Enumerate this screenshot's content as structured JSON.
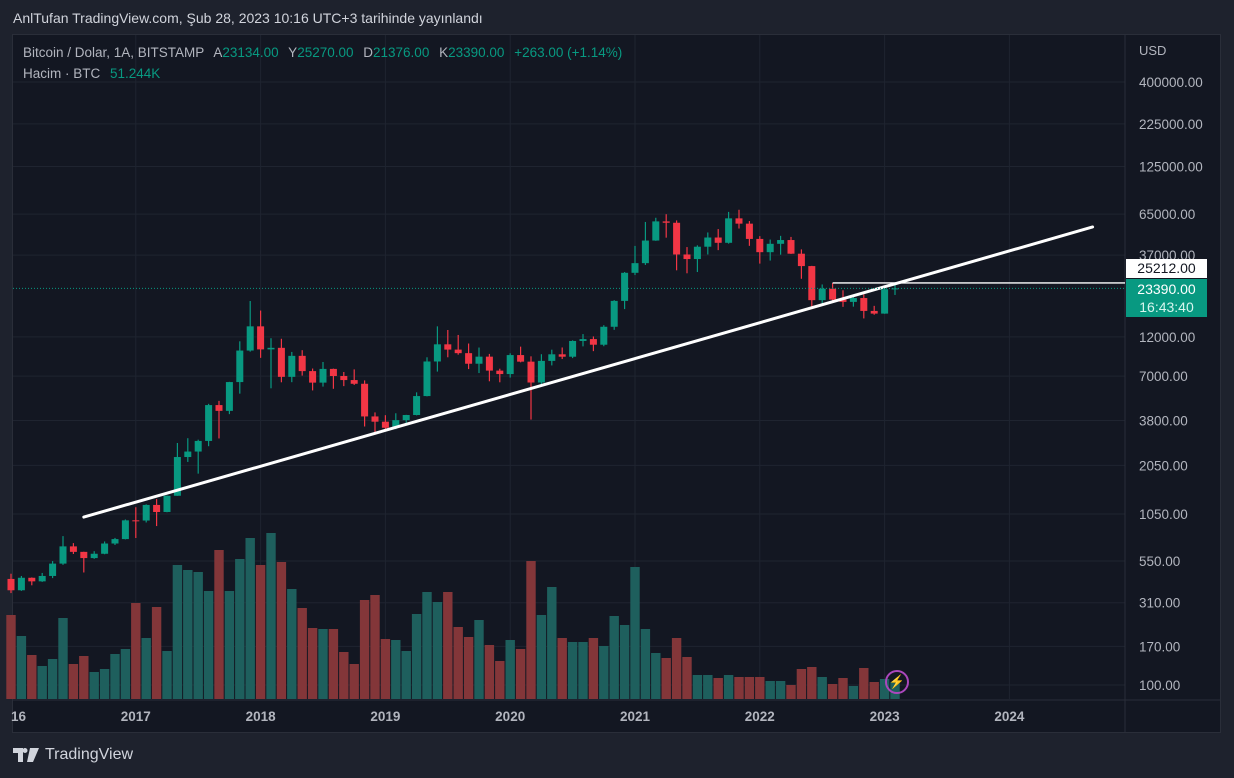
{
  "published": "AnlTufan TradingView.com, Şub 28, 2023 10:16 UTC+3 tarihinde yayınlandı",
  "legend": {
    "symbol": "Bitcoin / Dolar, 1A, BITSTAMP",
    "open_label": "A",
    "open": "23134.00",
    "high_label": "Y",
    "high": "25270.00",
    "low_label": "D",
    "low": "21376.00",
    "close_label": "K",
    "close": "23390.00",
    "change": "+263.00 (+1.14%)",
    "volume_label": "Hacim · BTC",
    "volume": "51.244K"
  },
  "price_boxes": {
    "line_price": "25212.00",
    "last_price": "23390.00",
    "countdown": "16:43:40"
  },
  "footer": {
    "brand": "TradingView"
  },
  "icons": {
    "logo": "tradingview-logo-icon",
    "bolt": "lightning-icon"
  },
  "colors": {
    "up": "#089981",
    "down": "#f23645",
    "vol_up": "#1e5f5d",
    "vol_down": "#833639",
    "line": "#ffffff"
  },
  "chart_data": {
    "type": "candlestick",
    "interval": "1 month",
    "start": "2016-01",
    "scale": "log",
    "currency": "USD",
    "yaxis_ticks": [
      "400000.00",
      "225000.00",
      "125000.00",
      "65000.00",
      "37000.00",
      "12000.00",
      "7000.00",
      "3800.00",
      "2050.00",
      "1050.00",
      "550.00",
      "310.00",
      "170.00",
      "100.00"
    ],
    "ytick_values": [
      400000,
      225000,
      125000,
      65000,
      37000,
      12000,
      7000,
      3800,
      2050,
      1050,
      550,
      310,
      170,
      100
    ],
    "xaxis_ticks": [
      {
        "label": "16",
        "month": 0
      },
      {
        "label": "2017",
        "month": 12
      },
      {
        "label": "2018",
        "month": 24
      },
      {
        "label": "2019",
        "month": 36
      },
      {
        "label": "2020",
        "month": 48
      },
      {
        "label": "2021",
        "month": 60
      },
      {
        "label": "2022",
        "month": 72
      },
      {
        "label": "2023",
        "month": 84
      },
      {
        "label": "2024",
        "month": 96
      }
    ],
    "ohlc": [
      [
        430,
        462,
        354,
        368
      ],
      [
        368,
        448,
        365,
        437
      ],
      [
        437,
        439,
        394,
        416
      ],
      [
        416,
        467,
        413,
        448
      ],
      [
        448,
        550,
        435,
        531
      ],
      [
        531,
        775,
        522,
        673
      ],
      [
        673,
        704,
        606,
        624
      ],
      [
        624,
        625,
        470,
        573
      ],
      [
        573,
        630,
        567,
        608
      ],
      [
        608,
        720,
        604,
        700
      ],
      [
        700,
        756,
        686,
        744
      ],
      [
        744,
        974,
        741,
        963
      ],
      [
        963,
        1153,
        755,
        960
      ],
      [
        960,
        1200,
        935,
        1190
      ],
      [
        1190,
        1290,
        890,
        1080
      ],
      [
        1080,
        1355,
        1076,
        1350
      ],
      [
        1350,
        2790,
        1350,
        2300
      ],
      [
        2300,
        2980,
        2150,
        2480
      ],
      [
        2480,
        2920,
        1830,
        2870
      ],
      [
        2870,
        4780,
        2670,
        4700
      ],
      [
        4700,
        4980,
        2970,
        4340
      ],
      [
        4340,
        6470,
        4150,
        6450
      ],
      [
        6450,
        11300,
        5500,
        9950
      ],
      [
        9950,
        19666,
        9800,
        13880
      ],
      [
        13880,
        17250,
        9000,
        10110
      ],
      [
        10110,
        11790,
        5920,
        10330
      ],
      [
        10330,
        11700,
        6430,
        6930
      ],
      [
        6930,
        9760,
        6440,
        9250
      ],
      [
        9250,
        10000,
        7050,
        7500
      ],
      [
        7500,
        7770,
        5750,
        6400
      ],
      [
        6400,
        8500,
        6060,
        7730
      ],
      [
        7730,
        7760,
        5880,
        7010
      ],
      [
        7010,
        7410,
        6100,
        6630
      ],
      [
        6630,
        7680,
        6200,
        6300
      ],
      [
        6300,
        6600,
        3500,
        4020
      ],
      [
        4020,
        4250,
        3130,
        3740
      ],
      [
        3740,
        4090,
        3360,
        3440
      ],
      [
        3440,
        4200,
        3370,
        3820
      ],
      [
        3820,
        4110,
        3680,
        4100
      ],
      [
        4100,
        5600,
        4080,
        5320
      ],
      [
        5320,
        9070,
        5300,
        8560
      ],
      [
        8560,
        13880,
        7450,
        10840
      ],
      [
        10840,
        13200,
        9070,
        10080
      ],
      [
        10080,
        12330,
        9400,
        9600
      ],
      [
        9600,
        10960,
        7710,
        8300
      ],
      [
        8300,
        10370,
        7300,
        9150
      ],
      [
        9150,
        9500,
        6520,
        7550
      ],
      [
        7550,
        7750,
        6430,
        7200
      ],
      [
        7200,
        9580,
        6860,
        9350
      ],
      [
        9350,
        10500,
        8460,
        8540
      ],
      [
        8540,
        9190,
        3850,
        6410
      ],
      [
        6410,
        9460,
        6150,
        8630
      ],
      [
        8630,
        10070,
        8110,
        9450
      ],
      [
        9450,
        10380,
        8850,
        9140
      ],
      [
        9140,
        11450,
        8970,
        11350
      ],
      [
        11350,
        12480,
        10540,
        11650
      ],
      [
        11650,
        12080,
        9870,
        10780
      ],
      [
        10780,
        14100,
        10560,
        13800
      ],
      [
        13800,
        19900,
        13230,
        19700
      ],
      [
        19700,
        29300,
        17600,
        28990
      ],
      [
        28990,
        41970,
        28100,
        33110
      ],
      [
        33110,
        58350,
        32300,
        45180
      ],
      [
        45180,
        61800,
        45000,
        58800
      ],
      [
        58800,
        64900,
        47000,
        57700
      ],
      [
        57700,
        59600,
        30000,
        37300
      ],
      [
        37300,
        41300,
        28800,
        35030
      ],
      [
        35030,
        42300,
        29300,
        41500
      ],
      [
        41500,
        50500,
        37300,
        47100
      ],
      [
        47100,
        52900,
        39600,
        43800
      ],
      [
        43800,
        67000,
        43300,
        61300
      ],
      [
        61300,
        69000,
        53300,
        57000
      ],
      [
        57000,
        59100,
        42000,
        46200
      ],
      [
        46200,
        48000,
        32900,
        38500
      ],
      [
        38500,
        45800,
        34300,
        43200
      ],
      [
        43200,
        48200,
        37200,
        45500
      ],
      [
        45500,
        47500,
        37600,
        37700
      ],
      [
        37700,
        40000,
        26700,
        31800
      ],
      [
        31800,
        31900,
        17600,
        19900
      ],
      [
        19900,
        24700,
        18800,
        23300
      ],
      [
        23300,
        25200,
        19600,
        20050
      ],
      [
        20050,
        22800,
        18150,
        19430
      ],
      [
        19430,
        20990,
        18200,
        20490
      ],
      [
        20490,
        21500,
        15480,
        17160
      ],
      [
        17160,
        18400,
        16280,
        16540
      ],
      [
        16540,
        23950,
        16500,
        23130
      ],
      [
        23134,
        25270,
        21376,
        23390
      ]
    ],
    "volume_k_btc": [
      252,
      189,
      132,
      99,
      120,
      243,
      105,
      129,
      81,
      90,
      135,
      150,
      288,
      183,
      276,
      144,
      402,
      387,
      381,
      324,
      447,
      324,
      420,
      483,
      402,
      498,
      411,
      330,
      273,
      213,
      210,
      210,
      141,
      105,
      297,
      312,
      180,
      177,
      144,
      255,
      321,
      291,
      321,
      216,
      186,
      237,
      162,
      114,
      177,
      150,
      414,
      252,
      336,
      183,
      171,
      171,
      183,
      159,
      249,
      222,
      396,
      210,
      138,
      123,
      183,
      126,
      72,
      72,
      63,
      72,
      66,
      66,
      66,
      54,
      54,
      42,
      90,
      96,
      66,
      45,
      63,
      39,
      93,
      51,
      60,
      51.244
    ],
    "trendline": {
      "from": {
        "month": 7,
        "price": 1007
      },
      "to": {
        "month": 104,
        "price": 54450
      }
    },
    "horizontal_line": {
      "from_month": 79,
      "price": 25212
    },
    "last_price_line": 23390
  }
}
